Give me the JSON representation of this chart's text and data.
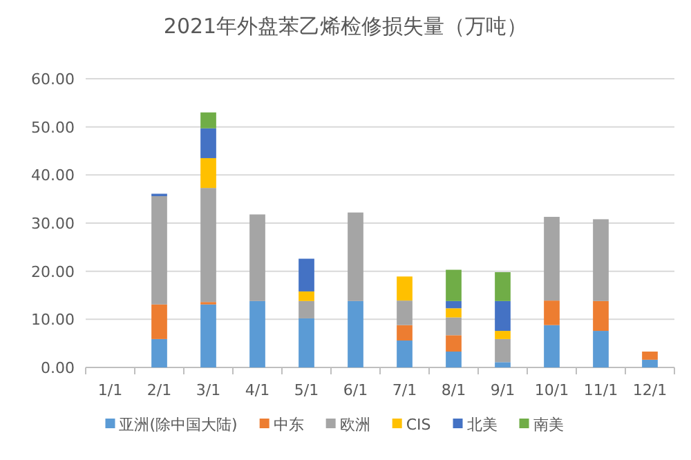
{
  "chart_data": {
    "type": "bar",
    "stacked": true,
    "title": "2021年外盘苯乙烯检修损失量（万吨）",
    "categories": [
      "1/1",
      "2/1",
      "3/1",
      "4/1",
      "5/1",
      "6/1",
      "7/1",
      "8/1",
      "9/1",
      "10/1",
      "11/1",
      "12/1"
    ],
    "series": [
      {
        "name": "亚洲(除中国大陆)",
        "color": "#5b9bd5",
        "values": [
          null,
          5.9,
          13.1,
          13.8,
          10.2,
          13.8,
          5.6,
          3.3,
          1.1,
          8.8,
          7.6,
          1.6
        ]
      },
      {
        "name": "中东",
        "color": "#ed7d31",
        "values": [
          null,
          7.2,
          0.5,
          null,
          null,
          null,
          3.2,
          3.4,
          null,
          5.1,
          6.2,
          1.7
        ]
      },
      {
        "name": "欧洲",
        "color": "#a5a5a5",
        "values": [
          null,
          22.5,
          23.7,
          18.0,
          3.6,
          18.4,
          5.1,
          3.7,
          4.8,
          17.4,
          17.0,
          null
        ]
      },
      {
        "name": "CIS",
        "color": "#ffc000",
        "values": [
          null,
          null,
          6.2,
          null,
          2.0,
          null,
          5.0,
          1.9,
          1.7,
          null,
          null,
          null
        ]
      },
      {
        "name": "北美",
        "color": "#4472c4",
        "values": [
          null,
          0.5,
          6.2,
          null,
          6.8,
          null,
          null,
          1.5,
          6.2,
          null,
          null,
          null
        ]
      },
      {
        "name": "南美",
        "color": "#70ad47",
        "values": [
          null,
          null,
          3.3,
          null,
          null,
          null,
          null,
          6.5,
          6.0,
          null,
          null,
          null
        ]
      }
    ],
    "ylim": [
      0,
      60
    ],
    "yticks": [
      {
        "value": 0,
        "label": "0.00"
      },
      {
        "value": 10,
        "label": "10.00"
      },
      {
        "value": 20,
        "label": "20.00"
      },
      {
        "value": 30,
        "label": "30.00"
      },
      {
        "value": 40,
        "label": "40.00"
      },
      {
        "value": 50,
        "label": "50.00"
      },
      {
        "value": 60,
        "label": "60.00"
      }
    ],
    "grid": "y",
    "legend": "bottom"
  }
}
